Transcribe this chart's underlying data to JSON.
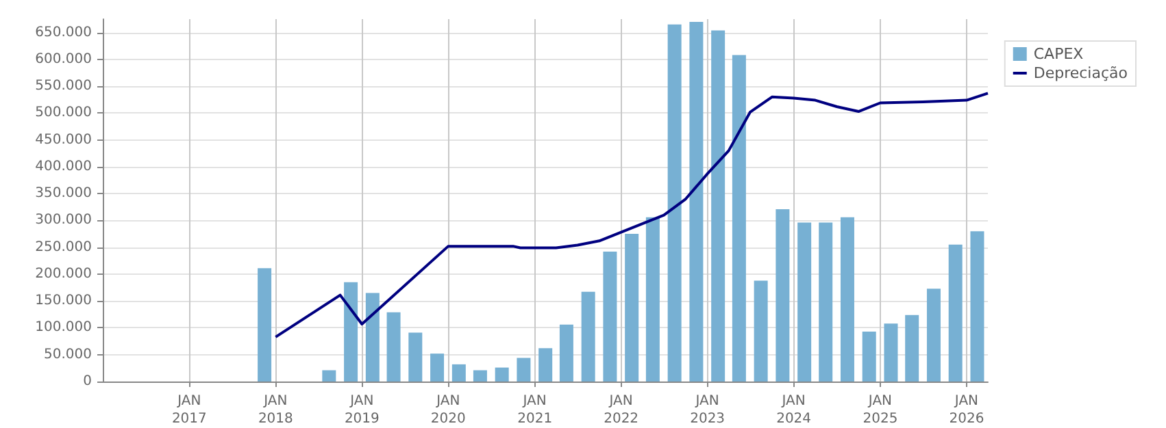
{
  "chart_data": {
    "type": "bar",
    "xlim": [
      "2016-01-01",
      "2026-04-01"
    ],
    "xticks": [
      {
        "value": "2017-01-01",
        "label": "JAN\n2017"
      },
      {
        "value": "2018-01-01",
        "label": "JAN\n2018"
      },
      {
        "value": "2019-01-01",
        "label": "JAN\n2019"
      },
      {
        "value": "2020-01-01",
        "label": "JAN\n2020"
      },
      {
        "value": "2021-01-01",
        "label": "JAN\n2021"
      },
      {
        "value": "2022-01-01",
        "label": "JAN\n2022"
      },
      {
        "value": "2023-01-01",
        "label": "JAN\n2023"
      },
      {
        "value": "2024-01-01",
        "label": "JAN\n2024"
      },
      {
        "value": "2025-01-01",
        "label": "JAN\n2025"
      },
      {
        "value": "2026-01-01",
        "label": "JAN\n2026"
      }
    ],
    "ylim": [
      0,
      675000
    ],
    "yticks": [
      {
        "value": 0,
        "label": "0"
      },
      {
        "value": 50000,
        "label": "50.000"
      },
      {
        "value": 100000,
        "label": "100.000"
      },
      {
        "value": 150000,
        "label": "150.000"
      },
      {
        "value": 200000,
        "label": "200.000"
      },
      {
        "value": 250000,
        "label": "250.000"
      },
      {
        "value": 300000,
        "label": "300.000"
      },
      {
        "value": 350000,
        "label": "350.000"
      },
      {
        "value": 400000,
        "label": "400.000"
      },
      {
        "value": 450000,
        "label": "450.000"
      },
      {
        "value": 500000,
        "label": "500.000"
      },
      {
        "value": 550000,
        "label": "550.000"
      },
      {
        "value": 600000,
        "label": "600.000"
      },
      {
        "value": 650000,
        "label": "650.000"
      }
    ],
    "grid": true,
    "legend": "top right",
    "series": [
      {
        "name": "CAPEX",
        "color": "#77b0d3",
        "x": [
          "2017-11-15",
          "2018-08-15",
          "2018-11-15",
          "2019-02-15",
          "2019-05-15",
          "2019-08-15",
          "2019-11-15",
          "2020-02-15",
          "2020-05-15",
          "2020-08-15",
          "2020-11-15",
          "2021-02-15",
          "2021-05-15",
          "2021-08-15",
          "2021-11-15",
          "2022-02-15",
          "2022-05-15",
          "2022-08-15",
          "2022-11-15",
          "2023-02-15",
          "2023-05-15",
          "2023-08-15",
          "2023-11-15",
          "2024-02-15",
          "2024-05-15",
          "2024-08-15",
          "2024-11-15",
          "2025-02-15",
          "2025-05-15",
          "2025-08-15",
          "2025-11-15",
          "2026-02-15"
        ],
        "values": [
          211000,
          21000,
          185000,
          165000,
          129000,
          91000,
          52000,
          32000,
          21000,
          26000,
          44000,
          62000,
          106000,
          167000,
          242000,
          275000,
          306000,
          665000,
          670000,
          654000,
          608000,
          188000,
          321000,
          296000,
          296000,
          306000,
          93000,
          108000,
          124000,
          173000,
          255000,
          280000
        ]
      },
      {
        "name": "Depreciação",
        "type": "line",
        "color": "#000080",
        "marker": "none",
        "line_style": "solid",
        "x": [
          "2018-01-01",
          "2018-10-01",
          "2019-01-01",
          "2020-01-01",
          "2020-10-01",
          "2020-11-01",
          "2021-04-01",
          "2021-07-01",
          "2021-10-01",
          "2022-01-01",
          "2022-07-01",
          "2022-10-01",
          "2023-01-01",
          "2023-04-01",
          "2023-07-01",
          "2023-10-01",
          "2024-01-01",
          "2024-04-01",
          "2024-07-01",
          "2024-10-01",
          "2025-01-01",
          "2025-07-01",
          "2026-01-01",
          "2026-04-01"
        ],
        "values": [
          83000,
          161000,
          107000,
          252000,
          252000,
          249000,
          249000,
          254000,
          262000,
          278000,
          310000,
          340000,
          387000,
          430000,
          502000,
          530000,
          528000,
          524000,
          512000,
          503000,
          519000,
          521000,
          524000,
          537000
        ]
      }
    ]
  }
}
